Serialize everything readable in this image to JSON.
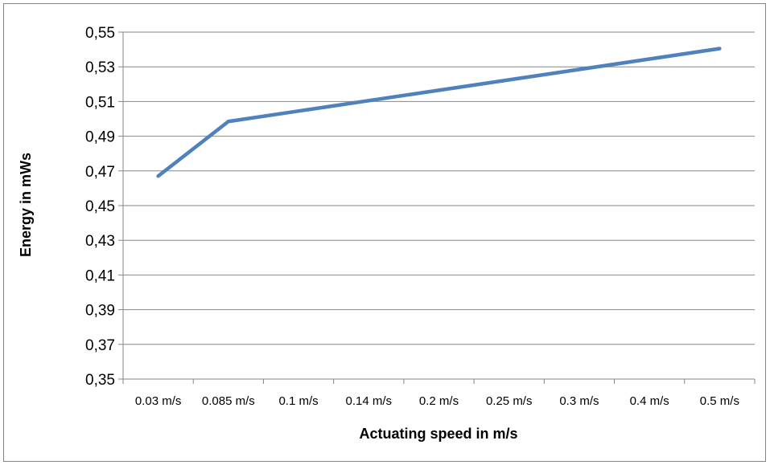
{
  "chart_data": {
    "type": "line",
    "title": "",
    "xlabel": "Actuating speed in m/s",
    "ylabel": "Energy in mWs",
    "categories": [
      "0.03 m/s",
      "0.085 m/s",
      "0.1 m/s",
      "0.14 m/s",
      "0.2 m/s",
      "0.25 m/s",
      "0.3 m/s",
      "0.4 m/s",
      "0.5 m/s"
    ],
    "series": [
      {
        "color": "#4f81bd",
        "points": [
          {
            "category": "0.03 m/s",
            "value": 0.467
          },
          {
            "category": "0.085 m/s",
            "value": 0.4985
          },
          {
            "category": "0.5 m/s",
            "value": 0.5405
          }
        ]
      }
    ],
    "ylim": [
      0.35,
      0.55
    ],
    "yticks": [
      "0,35",
      "0,37",
      "0,39",
      "0,41",
      "0,43",
      "0,45",
      "0,47",
      "0,49",
      "0,51",
      "0,53",
      "0,55"
    ],
    "grid": "horizontal",
    "legend": "none",
    "colors": {
      "line": "#4f81bd",
      "grid": "#868686",
      "frame": "#858585"
    }
  }
}
